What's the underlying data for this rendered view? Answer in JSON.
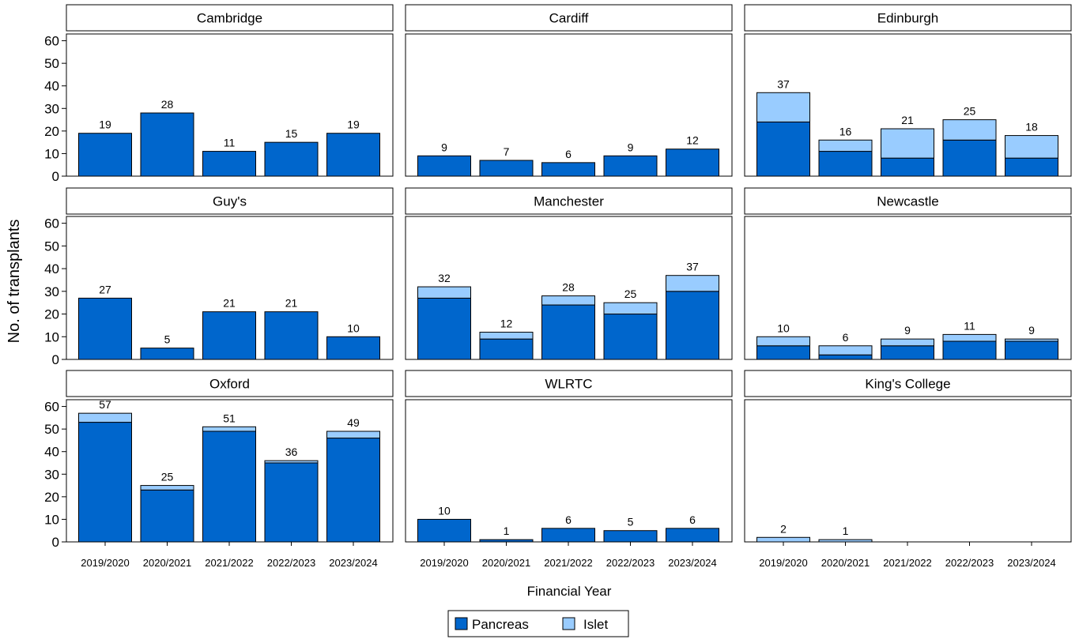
{
  "chart_data": {
    "type": "bar",
    "stacked": true,
    "xlabel": "Financial Year",
    "ylabel": "No. of transplants",
    "ylim": [
      0,
      60
    ],
    "yticks": [
      0,
      10,
      20,
      30,
      40,
      50,
      60
    ],
    "categories": [
      "2019/2020",
      "2020/2021",
      "2021/2022",
      "2022/2023",
      "2023/2024"
    ],
    "legend": {
      "placement": "bottom-center",
      "entries": [
        {
          "name": "Pancreas",
          "color": "#0066CC"
        },
        {
          "name": "Islet",
          "color": "#99CCFF"
        }
      ]
    },
    "panels": [
      {
        "name": "Cambridge",
        "pancreas": [
          19,
          28,
          11,
          15,
          19
        ],
        "islet": [
          0,
          0,
          0,
          0,
          0
        ],
        "totals": [
          19,
          28,
          11,
          15,
          19
        ]
      },
      {
        "name": "Cardiff",
        "pancreas": [
          9,
          7,
          6,
          9,
          12
        ],
        "islet": [
          0,
          0,
          0,
          0,
          0
        ],
        "totals": [
          9,
          7,
          6,
          9,
          12
        ]
      },
      {
        "name": "Edinburgh",
        "pancreas": [
          24,
          11,
          8,
          16,
          8
        ],
        "islet": [
          13,
          5,
          13,
          9,
          10
        ],
        "totals": [
          37,
          16,
          21,
          25,
          18
        ]
      },
      {
        "name": "Guy's",
        "pancreas": [
          27,
          5,
          21,
          21,
          10
        ],
        "islet": [
          0,
          0,
          0,
          0,
          0
        ],
        "totals": [
          27,
          5,
          21,
          21,
          10
        ]
      },
      {
        "name": "Manchester",
        "pancreas": [
          27,
          9,
          24,
          20,
          30
        ],
        "islet": [
          5,
          3,
          4,
          5,
          7
        ],
        "totals": [
          32,
          12,
          28,
          25,
          37
        ]
      },
      {
        "name": "Newcastle",
        "pancreas": [
          6,
          2,
          6,
          8,
          8
        ],
        "islet": [
          4,
          4,
          3,
          3,
          1
        ],
        "totals": [
          10,
          6,
          9,
          11,
          9
        ]
      },
      {
        "name": "Oxford",
        "pancreas": [
          53,
          23,
          49,
          35,
          46
        ],
        "islet": [
          4,
          2,
          2,
          1,
          3
        ],
        "totals": [
          57,
          25,
          51,
          36,
          49
        ]
      },
      {
        "name": "WLRTC",
        "pancreas": [
          10,
          1,
          6,
          5,
          6
        ],
        "islet": [
          0,
          0,
          0,
          0,
          0
        ],
        "totals": [
          10,
          1,
          6,
          5,
          6
        ]
      },
      {
        "name": "King's College",
        "pancreas": [
          0,
          0,
          0,
          0,
          0
        ],
        "islet": [
          2,
          1,
          0,
          0,
          0
        ],
        "totals": [
          2,
          1,
          null,
          null,
          null
        ]
      }
    ]
  }
}
